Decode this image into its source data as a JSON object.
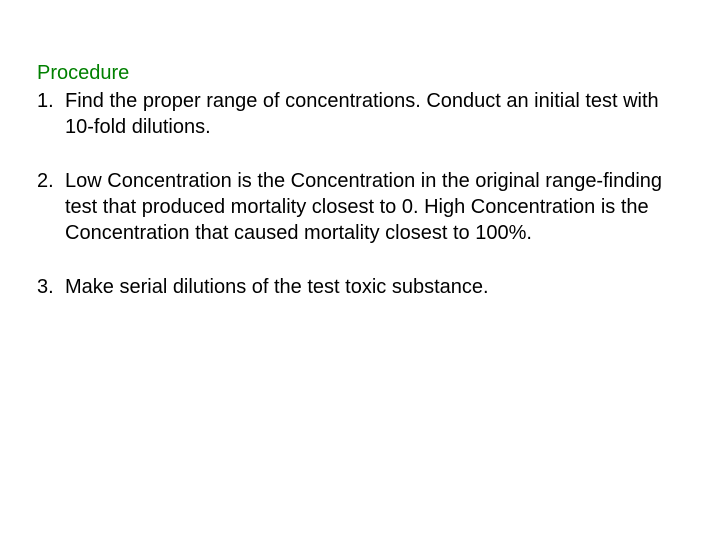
{
  "heading": {
    "text": "Procedure",
    "color": "#008000",
    "fontsize": 20
  },
  "body": {
    "color": "#000000",
    "fontsize": 20
  },
  "items": [
    {
      "number": "1.",
      "text": "Find the proper range of concentrations. Conduct an initial test with 10-fold dilutions."
    },
    {
      "number": "2.",
      "text": "Low Concentration is the Concentration in the original range-finding test that produced mortality closest to 0. High Concentration is the Concentration that caused mortality closest to 100%."
    },
    {
      "number": "3.",
      "text": "Make serial dilutions of the test toxic substance."
    }
  ],
  "background_color": "#ffffff"
}
